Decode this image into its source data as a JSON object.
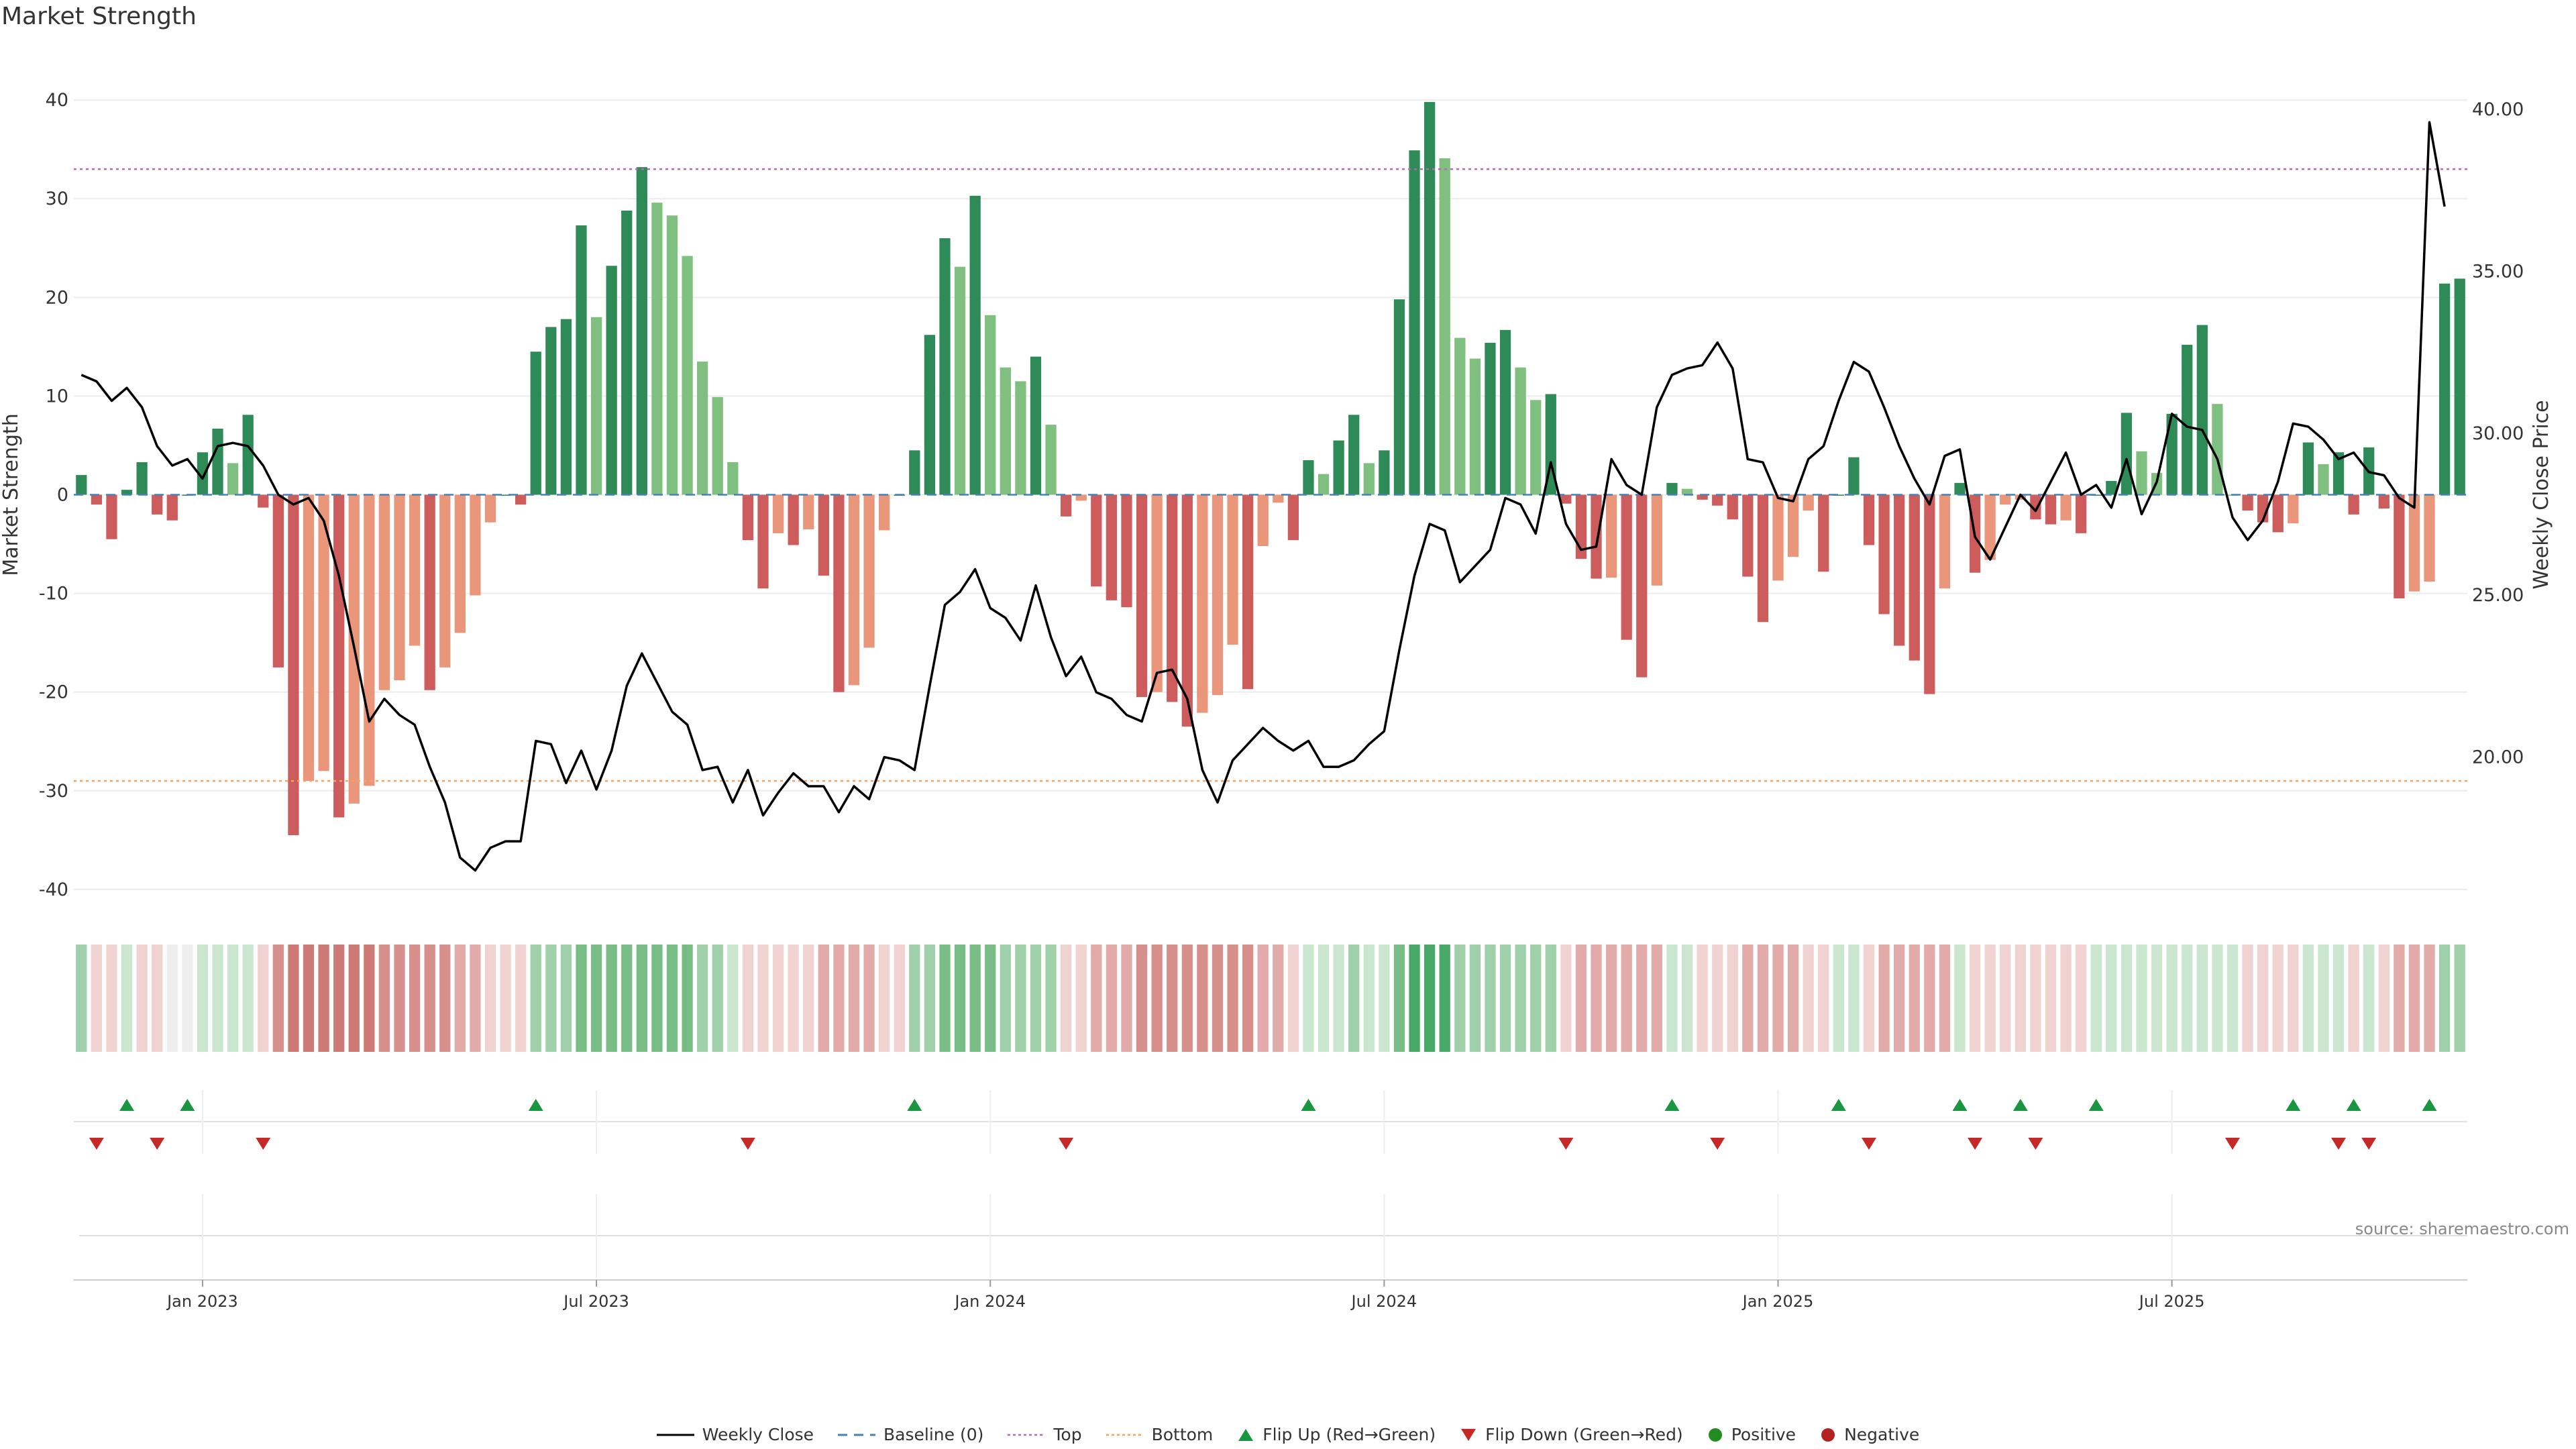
{
  "title": "Market Strength",
  "source": "source: sharemaestro.com",
  "colors": {
    "strong_green": "#2e8b57",
    "light_green": "#7fbf7f",
    "strong_red": "#cd5c5c",
    "light_red": "#e9967a",
    "line": "#000000",
    "baseline": "#4682b4",
    "top": "#b469b4",
    "bottom": "#f4a460",
    "flip_up": "#1a9641",
    "flip_down": "#c62828",
    "positive": "#228b22",
    "negative": "#b22222"
  },
  "legend": {
    "weekly_close": "Weekly Close",
    "baseline": "Baseline (0)",
    "top": "Top",
    "bottom": "Bottom",
    "flip_up": "Flip Up (Red→Green)",
    "flip_down": "Flip Down (Green→Red)",
    "positive": "Positive",
    "negative": "Negative"
  },
  "chart_data": {
    "type": "bar",
    "title": "Market Strength",
    "ylabel": "Market Strength",
    "y2label": "Weekly Close Price",
    "ylim": [
      -43,
      43
    ],
    "y2lim": [
      15.0,
      41.2
    ],
    "yticks": [
      -40,
      -30,
      -20,
      -10,
      0,
      10,
      20,
      30,
      40
    ],
    "y2ticks": [
      "20.00",
      "25.00",
      "30.00",
      "35.00",
      "40.00"
    ],
    "xticks": [
      "Jan 2023",
      "Jul 2023",
      "Jan 2024",
      "Jul 2024",
      "Jan 2025",
      "Jul 2025"
    ],
    "xtick_week_index": [
      8,
      34,
      60,
      86,
      112,
      138
    ],
    "top_line": 33,
    "bottom_line": -29,
    "series": [
      {
        "name": "Market Strength",
        "values": [
          2,
          -1,
          -4.5,
          0.5,
          3.3,
          -2,
          -2.6,
          0,
          4.3,
          6.7,
          3.2,
          8.1,
          -1.3,
          -17.5,
          -34.5,
          -29,
          -28,
          -32.7,
          -31.3,
          -29.5,
          -19.8,
          -18.8,
          -15.3,
          -19.8,
          -17.5,
          -14,
          -10.2,
          -2.8,
          0,
          -1,
          14.5,
          17,
          17.8,
          27.3,
          18,
          23.2,
          28.8,
          33.2,
          29.6,
          28.3,
          24.2,
          13.5,
          9.9,
          3.3,
          -4.6,
          -9.5,
          -3.9,
          -5.1,
          -3.5,
          -8.2,
          -20,
          -19.3,
          -15.5,
          -3.6,
          0,
          4.5,
          16.2,
          26,
          23.1,
          30.3,
          18.2,
          12.9,
          11.5,
          14,
          7.1,
          -2.2,
          -0.6,
          -9.3,
          -10.7,
          -11.4,
          -20.5,
          -20,
          -21,
          -23.5,
          -22.1,
          -20.3,
          -15.2,
          -19.7,
          -5.2,
          -0.8,
          -4.6,
          3.5,
          2.1,
          5.5,
          8.1,
          3.2,
          4.5,
          19.8,
          34.9,
          39.8,
          34.1,
          15.9,
          13.8,
          15.4,
          16.7,
          12.9,
          9.6,
          10.2,
          -0.9,
          -6.5,
          -8.5,
          -8.4,
          -14.7,
          -18.5,
          -9.2,
          1.2,
          0.6,
          -0.5,
          -1.1,
          -2.5,
          -8.3,
          -12.9,
          -8.7,
          -6.3,
          -1.6,
          -7.8,
          0,
          3.8,
          -5.1,
          -12.1,
          -15.3,
          -16.8,
          -20.2,
          -9.5,
          1.2,
          -7.9,
          -6.6,
          -1,
          -0.5,
          -2.5,
          -3,
          -2.6,
          -3.9,
          0,
          1.4,
          8.3,
          4.4,
          2.2,
          8.2,
          15.2,
          17.2,
          9.2,
          0,
          -1.6,
          -2.8,
          -3.8,
          -2.9,
          5.3,
          3.1,
          4.3,
          -2,
          4.8,
          -1.4,
          -10.5,
          -9.8,
          -8.8,
          21.4,
          21.9
        ]
      },
      {
        "name": "Weekly Close",
        "values": [
          31.8,
          31.6,
          31.0,
          31.4,
          30.8,
          29.6,
          29.0,
          29.2,
          28.6,
          29.6,
          29.7,
          29.6,
          29.0,
          28.1,
          27.8,
          28.0,
          27.3,
          25.6,
          23.4,
          21.1,
          21.8,
          21.3,
          21.0,
          19.7,
          18.6,
          16.9,
          16.5,
          17.2,
          17.4,
          17.4,
          20.5,
          20.4,
          19.2,
          20.2,
          19.0,
          20.2,
          22.2,
          23.2,
          22.3,
          21.4,
          21.0,
          19.6,
          19.7,
          18.6,
          19.6,
          18.2,
          18.9,
          19.5,
          19.1,
          19.1,
          18.3,
          19.1,
          18.7,
          20.0,
          19.9,
          19.6,
          22.2,
          24.7,
          25.1,
          25.8,
          24.6,
          24.3,
          23.6,
          25.3,
          23.7,
          22.5,
          23.1,
          22.0,
          21.8,
          21.3,
          21.1,
          22.6,
          22.7,
          21.8,
          19.6,
          18.6,
          19.9,
          20.4,
          20.9,
          20.5,
          20.2,
          20.5,
          19.7,
          19.7,
          19.9,
          20.4,
          20.8,
          23.3,
          25.6,
          27.2,
          27.0,
          25.4,
          25.9,
          26.4,
          28.0,
          27.8,
          26.9,
          29.1,
          27.2,
          26.4,
          26.5,
          29.2,
          28.4,
          28.1,
          30.8,
          31.8,
          32.0,
          32.1,
          32.8,
          32.0,
          29.2,
          29.1,
          28.0,
          27.9,
          29.2,
          29.6,
          31.0,
          32.2,
          31.9,
          30.8,
          29.6,
          28.6,
          27.8,
          29.3,
          29.5,
          26.8,
          26.1,
          27.1,
          28.1,
          27.6,
          28.5,
          29.4,
          28.1,
          28.4,
          27.7,
          29.2,
          27.5,
          28.5,
          30.6,
          30.2,
          30.1,
          29.2,
          27.4,
          26.7,
          27.3,
          28.5,
          30.3,
          30.2,
          29.8,
          29.2,
          29.4,
          28.8,
          28.7,
          28.0,
          27.7,
          39.6,
          37.0
        ]
      }
    ],
    "flip_up_weeks": [
      3,
      7,
      30,
      55,
      81,
      105,
      116,
      124,
      128,
      133,
      146,
      150,
      155
    ],
    "flip_down_weeks": [
      1,
      5,
      12,
      44,
      65,
      98,
      108,
      118,
      125,
      129,
      142,
      149,
      151
    ],
    "strength_strip": [
      2,
      -1,
      -1,
      1,
      -1,
      -1,
      0,
      0,
      1,
      1,
      1,
      1,
      -1,
      -3,
      -4,
      -4,
      -4,
      -4,
      -4,
      -4,
      -3,
      -3,
      -3,
      -3,
      -3,
      -2,
      -2,
      -1,
      -1,
      -1,
      2,
      2,
      2,
      3,
      3,
      3,
      3,
      3,
      3,
      3,
      3,
      2,
      2,
      1,
      -1,
      -1,
      -1,
      -1,
      -1,
      -2,
      -2,
      -2,
      -2,
      -1,
      -1,
      2,
      2,
      3,
      3,
      3,
      3,
      2,
      2,
      2,
      2,
      -1,
      -1,
      -2,
      -2,
      -2,
      -3,
      -3,
      -3,
      -3,
      -3,
      -3,
      -3,
      -3,
      -2,
      -2,
      -1,
      1,
      1,
      1,
      2,
      1,
      1,
      3,
      4,
      4,
      4,
      2,
      2,
      2,
      2,
      2,
      2,
      2,
      -1,
      -2,
      -2,
      -2,
      -2,
      -2,
      -2,
      1,
      1,
      -1,
      -1,
      -1,
      -2,
      -2,
      -2,
      -2,
      -1,
      -1,
      1,
      1,
      -1,
      -2,
      -2,
      -2,
      -2,
      -2,
      1,
      -1,
      -1,
      -1,
      -1,
      -1,
      -1,
      -1,
      -1,
      1,
      1,
      1,
      1,
      1,
      1,
      1,
      1,
      1,
      1,
      -1,
      -1,
      -1,
      -1,
      1,
      1,
      1,
      -1,
      1,
      -1,
      -2,
      -2,
      -2,
      2,
      2
    ]
  }
}
